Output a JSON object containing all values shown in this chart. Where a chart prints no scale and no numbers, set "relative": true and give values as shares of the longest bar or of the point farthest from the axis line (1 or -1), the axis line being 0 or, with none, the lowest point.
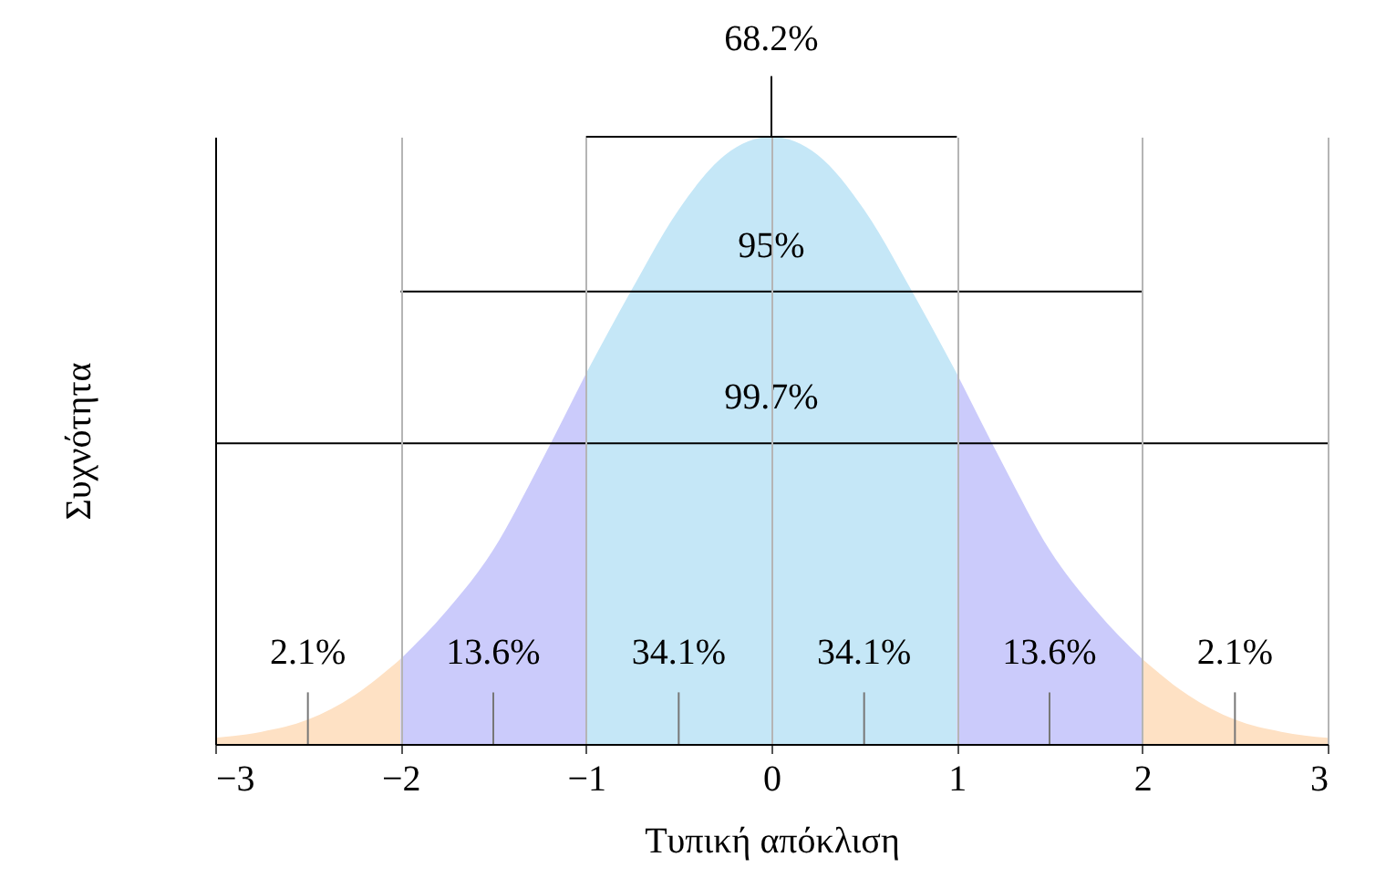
{
  "chart_data": {
    "type": "area",
    "relative": true,
    "xlabel": "Τυπική απόκλιση",
    "ylabel": "Συχνότητα",
    "grid": "x",
    "xlim": [
      -3,
      3
    ],
    "xticks": [
      {
        "value": -3,
        "label": "−3"
      },
      {
        "value": -2,
        "label": "−2"
      },
      {
        "value": -1,
        "label": "−1"
      },
      0,
      1,
      2,
      3
    ],
    "series": [
      {
        "color": "#fee1c4",
        "x": [
          -3,
          -2.75,
          -2.5,
          -2.25,
          -2
        ],
        "values": [
          0.01,
          0.02,
          0.04,
          0.08,
          0.14
        ]
      },
      {
        "color": "#cbcbfb",
        "x": [
          -2,
          -1.75,
          -1.5,
          -1.25,
          -1
        ],
        "values": [
          0.14,
          0.22,
          0.32,
          0.46,
          0.61
        ]
      },
      {
        "color": "#c5e7f7",
        "x": [
          -1,
          -0.75,
          -0.5,
          -0.25,
          0,
          0.25,
          0.5,
          0.75,
          1
        ],
        "values": [
          0.61,
          0.75,
          0.88,
          0.97,
          1,
          0.97,
          0.88,
          0.75,
          0.61
        ]
      },
      {
        "color": "#cbcbfb",
        "x": [
          1,
          1.25,
          1.5,
          1.75,
          2
        ],
        "values": [
          0.61,
          0.46,
          0.32,
          0.22,
          0.14
        ]
      },
      {
        "color": "#fee1c4",
        "x": [
          2,
          2.25,
          2.5,
          2.75,
          3
        ],
        "values": [
          0.14,
          0.08,
          0.04,
          0.02,
          0.01
        ]
      },
      {
        "type": "line",
        "name": "68.2%",
        "color": "#000000",
        "x": [
          -1,
          1
        ],
        "values": [
          1,
          1
        ]
      },
      {
        "type": "line",
        "name": "95%",
        "color": "#000000",
        "x": [
          -2,
          2
        ],
        "values": [
          0.745,
          0.745
        ]
      },
      {
        "type": "line",
        "name": "99.7%",
        "color": "#000000",
        "x": [
          -3,
          3
        ],
        "values": [
          0.495,
          0.495
        ]
      }
    ],
    "annotations": [
      "2.1%",
      "13.6%",
      "34.1%",
      "34.1%",
      "13.6%",
      "2.1%"
    ]
  }
}
